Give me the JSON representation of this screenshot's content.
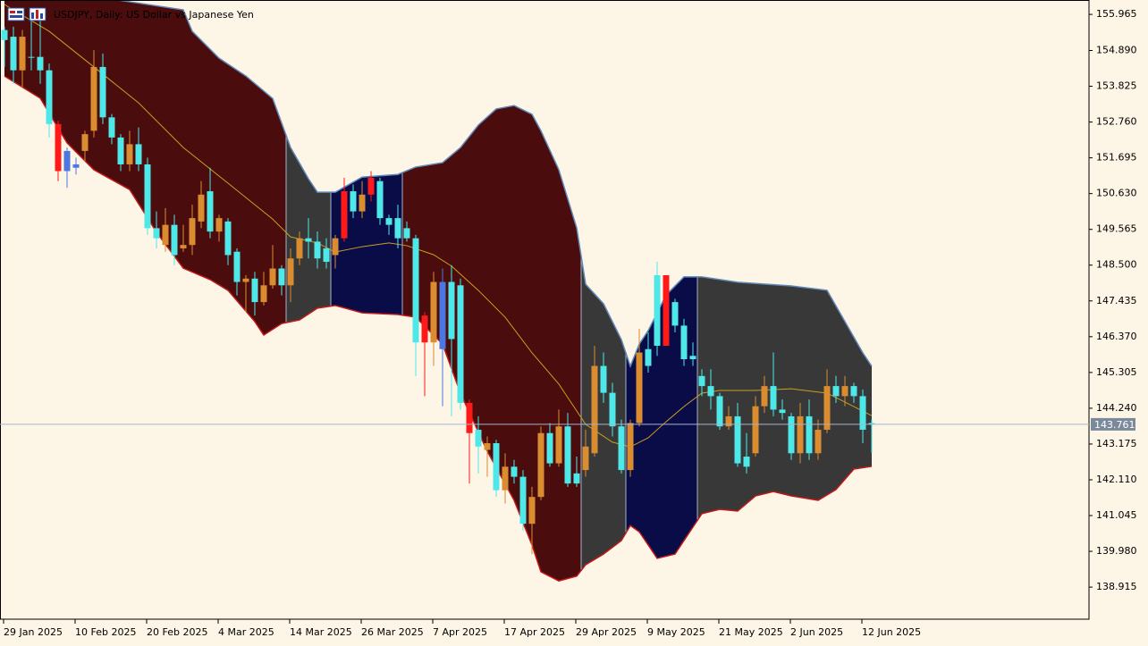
{
  "chart_data": {
    "type": "candlestick",
    "title": "USDJPY, Daily:  US Dollar vs Japanese Yen",
    "background": "#fdf5e6",
    "open": [
      155.5,
      155.3,
      154.3,
      154.7,
      154.7,
      154.3,
      152.7,
      151.9,
      151.5,
      151.9,
      152.5,
      154.4,
      152.9,
      152.3,
      151.5,
      152.1,
      151.5,
      149.6,
      149.1,
      149.7,
      149.0,
      149.1,
      149.8,
      150.7,
      149.5,
      149.8,
      148.9,
      148.0,
      148.1,
      147.4,
      147.9,
      148.4,
      147.9,
      148.7,
      149.3,
      149.2,
      149.0,
      148.8,
      149.3,
      150.7,
      150.1,
      150.6,
      151.0,
      149.9,
      149.9,
      149.6,
      149.3,
      147.0,
      146.2,
      148.0,
      148.0,
      147.9,
      144.4,
      143.6,
      143.0,
      143.2,
      141.8,
      142.5,
      142.2,
      140.8,
      141.6,
      143.5,
      142.6,
      143.7,
      142.3,
      142.4,
      142.9,
      145.5,
      144.7,
      143.7,
      142.4,
      143.8,
      146.0,
      148.2,
      146.1,
      147.4,
      146.7,
      145.8,
      145.2,
      144.9,
      144.6,
      143.7,
      144.0,
      142.8,
      142.9,
      144.3,
      144.9,
      144.2,
      144.0,
      142.9,
      144.0,
      142.9,
      143.6,
      144.9,
      144.6,
      144.9,
      144.6,
      143.8
    ],
    "high": [
      155.6,
      155.6,
      155.5,
      156.1,
      156.0,
      154.5,
      152.8,
      152.0,
      151.7,
      152.5,
      154.9,
      154.8,
      153.0,
      152.4,
      152.5,
      152.6,
      151.7,
      150.1,
      150.2,
      150.0,
      149.7,
      150.3,
      151.0,
      151.4,
      150.0,
      149.9,
      149.0,
      148.2,
      148.3,
      148.3,
      149.1,
      148.5,
      149.0,
      149.5,
      149.9,
      149.5,
      149.3,
      149.4,
      151.1,
      150.9,
      151.0,
      151.3,
      151.1,
      150.0,
      150.3,
      149.8,
      149.4,
      147.1,
      148.3,
      148.4,
      148.5,
      148.1,
      144.5,
      144.0,
      143.4,
      143.3,
      142.9,
      142.7,
      142.4,
      141.9,
      143.7,
      143.8,
      144.2,
      144.1,
      142.8,
      143.6,
      146.1,
      145.9,
      145.0,
      143.9,
      143.9,
      146.6,
      146.5,
      148.6,
      148.2,
      147.5,
      146.9,
      146.2,
      145.4,
      145.4,
      144.7,
      144.3,
      144.4,
      143.5,
      144.6,
      145.2,
      145.9,
      144.5,
      144.1,
      144.4,
      144.5,
      143.9,
      145.4,
      145.2,
      145.2,
      145.0,
      144.8,
      143.9
    ],
    "low": [
      154.4,
      153.9,
      153.8,
      154.3,
      153.9,
      152.3,
      151.0,
      150.8,
      151.2,
      151.6,
      152.3,
      152.7,
      152.1,
      151.3,
      151.3,
      151.3,
      149.4,
      149.0,
      148.9,
      148.5,
      148.9,
      148.8,
      149.6,
      149.3,
      149.2,
      148.5,
      147.6,
      147.1,
      147.0,
      147.3,
      147.8,
      147.6,
      147.4,
      148.5,
      148.7,
      148.4,
      148.4,
      148.4,
      149.2,
      149.9,
      149.9,
      150.4,
      149.7,
      149.4,
      149.0,
      149.2,
      145.2,
      144.6,
      145.5,
      144.3,
      144.0,
      144.2,
      142.0,
      142.3,
      142.2,
      141.6,
      141.4,
      142.0,
      140.6,
      139.9,
      141.5,
      142.5,
      142.5,
      141.9,
      141.9,
      142.2,
      142.8,
      144.4,
      143.4,
      142.3,
      142.2,
      143.7,
      145.3,
      145.8,
      146.1,
      146.5,
      145.5,
      145.5,
      144.6,
      144.2,
      143.6,
      143.6,
      142.5,
      142.3,
      142.8,
      144.1,
      144.0,
      143.9,
      142.7,
      142.6,
      142.7,
      142.7,
      143.5,
      144.4,
      144.3,
      144.4,
      143.2,
      142.9
    ],
    "close": [
      155.2,
      154.3,
      155.3,
      154.7,
      154.3,
      152.7,
      151.3,
      151.3,
      151.4,
      152.4,
      154.4,
      152.9,
      152.3,
      151.5,
      152.1,
      151.5,
      149.6,
      149.3,
      149.7,
      148.8,
      149.1,
      149.9,
      150.6,
      149.5,
      149.9,
      148.8,
      148.0,
      148.1,
      147.4,
      147.9,
      148.4,
      147.9,
      148.7,
      149.3,
      149.2,
      148.7,
      148.6,
      149.3,
      150.7,
      150.1,
      150.6,
      151.1,
      149.9,
      149.7,
      149.3,
      149.3,
      146.2,
      146.2,
      148.0,
      146.0,
      146.3,
      144.4,
      143.5,
      143.1,
      143.2,
      141.8,
      142.5,
      142.2,
      140.8,
      141.6,
      143.5,
      142.6,
      143.7,
      142.0,
      142.0,
      143.1,
      145.5,
      144.7,
      143.7,
      142.4,
      143.8,
      145.9,
      145.5,
      146.1,
      148.2,
      146.7,
      145.7,
      145.7,
      144.9,
      144.6,
      143.7,
      144.0,
      142.6,
      142.5,
      144.3,
      144.9,
      144.2,
      144.1,
      142.9,
      144.0,
      142.9,
      143.6,
      144.9,
      144.6,
      144.9,
      144.6,
      143.6,
      143.76
    ],
    "colors": [
      "#4ee8e8",
      "#4ee8e8",
      "#d98c30",
      "#4ee8e8",
      "#4ee8e8",
      "#4ee8e8",
      "#ff1a1a",
      "#4a78e0",
      "#4a78e0",
      "#d98c30",
      "#d98c30",
      "#4ee8e8",
      "#4ee8e8",
      "#4ee8e8",
      "#d98c30",
      "#4ee8e8",
      "#4ee8e8",
      "#4ee8e8",
      "#d98c30",
      "#4ee8e8",
      "#d98c30",
      "#d98c30",
      "#d98c30",
      "#4ee8e8",
      "#d98c30",
      "#4ee8e8",
      "#4ee8e8",
      "#d98c30",
      "#4ee8e8",
      "#d98c30",
      "#d98c30",
      "#4ee8e8",
      "#d98c30",
      "#d98c30",
      "#4ee8e8",
      "#4ee8e8",
      "#4ee8e8",
      "#d98c30",
      "#ff1a1a",
      "#4ee8e8",
      "#d98c30",
      "#ff1a1a",
      "#4ee8e8",
      "#4ee8e8",
      "#4ee8e8",
      "#4ee8e8",
      "#4ee8e8",
      "#ff1a1a",
      "#d98c30",
      "#4a78e0",
      "#4ee8e8",
      "#4ee8e8",
      "#ff1a1a",
      "#4ee8e8",
      "#d98c30",
      "#4ee8e8",
      "#d98c30",
      "#4ee8e8",
      "#4ee8e8",
      "#d98c30",
      "#d98c30",
      "#4ee8e8",
      "#d98c30",
      "#4ee8e8",
      "#4ee8e8",
      "#d98c30",
      "#d98c30",
      "#4ee8e8",
      "#4ee8e8",
      "#4ee8e8",
      "#d98c30",
      "#d98c30",
      "#4ee8e8",
      "#4ee8e8",
      "#ff1a1a",
      "#4ee8e8",
      "#4ee8e8",
      "#4ee8e8",
      "#4ee8e8",
      "#4ee8e8",
      "#4ee8e8",
      "#d98c30",
      "#4ee8e8",
      "#4ee8e8",
      "#d98c30",
      "#d98c30",
      "#4ee8e8",
      "#4ee8e8",
      "#4ee8e8",
      "#d98c30",
      "#4ee8e8",
      "#d98c30",
      "#d98c30",
      "#4ee8e8",
      "#d98c30",
      "#4ee8e8",
      "#4ee8e8",
      "#4ee8e8"
    ],
    "bands": {
      "upper": {
        "color": "#5f88b8",
        "x": [
          0,
          10,
          20,
          21,
          24,
          27,
          30,
          32,
          34,
          35,
          37,
          40,
          44,
          46,
          49,
          51,
          53,
          55,
          57,
          59,
          60,
          62,
          64,
          65,
          67,
          69,
          70,
          71,
          72,
          74,
          76,
          78,
          82,
          88,
          92,
          94,
          96,
          97
        ],
        "values": [
          156.66,
          156.5,
          156.1,
          155.46,
          154.66,
          154.13,
          153.46,
          152.0,
          151.07,
          150.67,
          150.67,
          151.12,
          151.2,
          151.42,
          151.55,
          152.0,
          152.67,
          153.15,
          153.25,
          152.99,
          152.5,
          151.34,
          149.61,
          147.93,
          147.35,
          146.28,
          145.49,
          146.15,
          146.55,
          147.61,
          148.15,
          148.15,
          147.99,
          147.88,
          147.75,
          146.82,
          145.89,
          145.49
        ]
      },
      "lower": {
        "color": "#c01818",
        "x": [
          0,
          4,
          7,
          10,
          14,
          17,
          20,
          23,
          25,
          28,
          29,
          31,
          33,
          35,
          37,
          40,
          44,
          46,
          49,
          51,
          54,
          57,
          59,
          60,
          62,
          64,
          65,
          67,
          69,
          70,
          71,
          72,
          73,
          75,
          77,
          78,
          80,
          82,
          84,
          86,
          88,
          91,
          93,
          95,
          97
        ],
        "values": [
          154.13,
          153.47,
          152.14,
          151.34,
          150.75,
          149.48,
          148.41,
          148.07,
          147.75,
          146.82,
          146.42,
          146.76,
          146.87,
          147.22,
          147.3,
          147.08,
          147.03,
          146.95,
          146.15,
          144.69,
          142.96,
          141.5,
          140.17,
          139.37,
          139.1,
          139.24,
          139.58,
          139.9,
          140.3,
          140.75,
          140.56,
          140.17,
          139.77,
          139.9,
          140.7,
          141.1,
          141.23,
          141.18,
          141.63,
          141.76,
          141.63,
          141.5,
          141.82,
          142.43,
          142.51
        ]
      },
      "middle": {
        "color": "#c8a020",
        "x": [
          0,
          5,
          10,
          15,
          20,
          25,
          30,
          32,
          35,
          37,
          40,
          43,
          45,
          48,
          50,
          53,
          56,
          59,
          62,
          65,
          68,
          70,
          72,
          74,
          76,
          78,
          80,
          84,
          88,
          92,
          95,
          97
        ],
        "values": [
          156.26,
          155.46,
          154.4,
          153.33,
          152.0,
          150.94,
          149.87,
          149.34,
          149.16,
          148.89,
          149.05,
          149.16,
          149.08,
          148.81,
          148.47,
          147.75,
          146.95,
          145.89,
          144.96,
          143.76,
          143.23,
          143.09,
          143.36,
          143.84,
          144.29,
          144.69,
          144.77,
          144.77,
          144.82,
          144.69,
          144.29,
          144.02
        ]
      }
    },
    "zones": [
      {
        "from": 0,
        "to": 31,
        "color": "#4a0c0c"
      },
      {
        "from": 32,
        "to": 36,
        "color": "#383838"
      },
      {
        "from": 37,
        "to": 44,
        "color": "#0a0c48"
      },
      {
        "from": 45,
        "to": 64,
        "color": "#4a0c0c"
      },
      {
        "from": 65,
        "to": 69,
        "color": "#383838"
      },
      {
        "from": 70,
        "to": 77,
        "color": "#0a0c48"
      },
      {
        "from": 78,
        "to": 97,
        "color": "#383838"
      }
    ],
    "ylim": [
      137.96,
      156.34
    ],
    "yticks": [
      155.965,
      {
        "value": 154.89,
        "label": "154.890"
      },
      153.825,
      {
        "value": 152.76,
        "label": "152.760"
      },
      151.695,
      {
        "value": 150.63,
        "label": "150.630"
      },
      149.565,
      {
        "value": 148.5,
        "label": "148.500"
      },
      147.435,
      {
        "value": 146.37,
        "label": "146.370"
      },
      145.305,
      {
        "value": 144.24,
        "label": "144.240"
      },
      143.175,
      {
        "value": 142.11,
        "label": "142.110"
      },
      141.045,
      {
        "value": 139.98,
        "label": "139.980"
      },
      138.915
    ],
    "xticks": [
      {
        "value": 0,
        "label": "29 Jan 2025"
      },
      {
        "value": 8,
        "label": "10 Feb 2025"
      },
      {
        "value": 16,
        "label": "20 Feb 2025"
      },
      {
        "value": 24,
        "label": "4 Mar 2025"
      },
      {
        "value": 32,
        "label": "14 Mar 2025"
      },
      {
        "value": 40,
        "label": "26 Mar 2025"
      },
      {
        "value": 48,
        "label": "7 Apr 2025"
      },
      {
        "value": 56,
        "label": "17 Apr 2025"
      },
      {
        "value": 64,
        "label": "29 Apr 2025"
      },
      {
        "value": 72,
        "label": "9 May 2025"
      },
      {
        "value": 80,
        "label": "21 May 2025"
      },
      {
        "value": 88,
        "label": "2 Jun 2025"
      },
      {
        "value": 96,
        "label": "12 Jun 2025"
      }
    ],
    "last_price": 143.761,
    "last_price_color": "#7b8a9a"
  }
}
